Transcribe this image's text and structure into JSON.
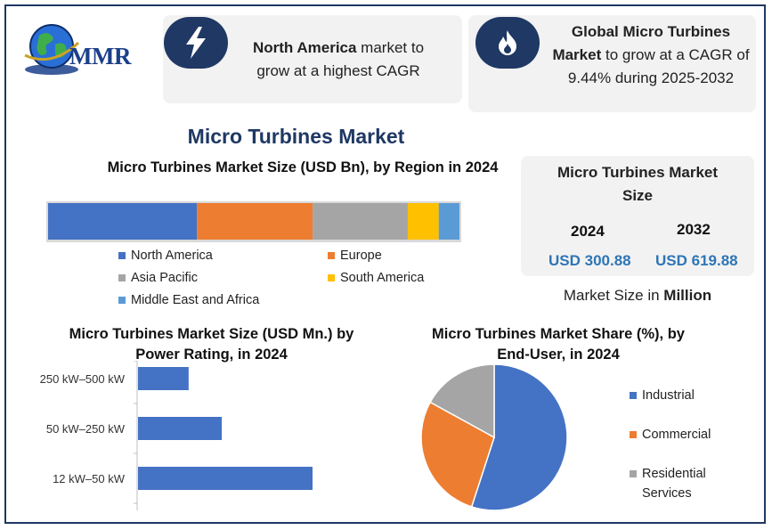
{
  "brand": {
    "logo_text": "MMR"
  },
  "callouts": {
    "left": {
      "bold": "North America",
      "rest": " market to grow at a highest CAGR",
      "icon": "lightning-icon"
    },
    "right": {
      "bold": "Global Micro Turbines Market",
      "rest": " to grow at a CAGR of 9.44% during 2025-2032",
      "icon": "flame-icon"
    }
  },
  "main_title": "Micro Turbines Market",
  "market_size": {
    "heading": "Micro Turbines Market Size",
    "years": [
      "2024",
      "2032"
    ],
    "values": [
      "USD 300.88",
      "USD 619.88"
    ],
    "note_prefix": "Market Size in ",
    "note_bold": "Million"
  },
  "colors": {
    "north_america": "#4472c4",
    "europe": "#ed7d31",
    "asia_pacific": "#a5a5a5",
    "south_america": "#ffc000",
    "mea": "#5b9bd5",
    "navy": "#1f3864"
  },
  "chart_data": [
    {
      "type": "bar",
      "orientation": "stacked-horizontal",
      "title": "Micro Turbines Market  Size (USD Bn), by Region in 2024",
      "categories": [
        "2024"
      ],
      "series": [
        {
          "name": "North America",
          "values": [
            36
          ]
        },
        {
          "name": "Europe",
          "values": [
            28
          ]
        },
        {
          "name": "Asia Pacific",
          "values": [
            23
          ]
        },
        {
          "name": "South America",
          "values": [
            7.5
          ]
        },
        {
          "name": "Middle East and Africa",
          "values": [
            5
          ]
        }
      ],
      "legend": "bottom"
    },
    {
      "type": "bar",
      "orientation": "horizontal",
      "title": "Micro Turbines Market Size (USD Mn.) by Power Rating, in 2024",
      "categories": [
        "250 kW–500 kW",
        "50 kW–250 kW",
        "12 kW–50 kW"
      ],
      "values": [
        29,
        48,
        100
      ]
    },
    {
      "type": "pie",
      "title": "Micro Turbines Market Share (%), by End-User, in 2024",
      "categories": [
        "Industrial",
        "Commercial",
        "Residential Services"
      ],
      "values": [
        55,
        28,
        17
      ],
      "legend": "right"
    }
  ]
}
